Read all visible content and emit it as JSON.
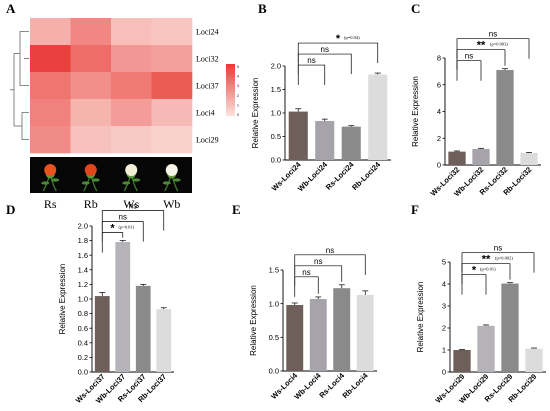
{
  "panel_letters": [
    "A",
    "B",
    "C",
    "D",
    "E",
    "F"
  ],
  "heatmap": {
    "rows": [
      "Loci24",
      "Loci32",
      "Loci37",
      "Loci4",
      "Loci29"
    ],
    "cols": [
      "Rs",
      "Rb",
      "Ws",
      "Wb"
    ],
    "values": [
      [
        0.3,
        0.55,
        0.22,
        0.18
      ],
      [
        0.95,
        0.7,
        0.45,
        0.4
      ],
      [
        0.65,
        0.5,
        0.62,
        0.8
      ],
      [
        0.58,
        0.28,
        0.42,
        0.25
      ],
      [
        0.52,
        0.2,
        0.15,
        0.1
      ]
    ],
    "legend_ticks": [
      "5",
      "4",
      "3",
      "2",
      "1",
      "0"
    ],
    "color_low": "#fbe3df",
    "color_high": "#e83a35"
  },
  "chart_data": [
    {
      "panel": "B",
      "type": "bar",
      "categories": [
        "Ws-Loci24",
        "Wb-Loci24",
        "Rs-Loci24",
        "Rb-Loci24"
      ],
      "values": [
        1.03,
        0.83,
        0.71,
        1.82
      ],
      "errors": [
        0.06,
        0.04,
        0.02,
        0.03
      ],
      "ylabel": "Relative Expression",
      "ylim": [
        0,
        2.0
      ],
      "yticks": [
        "0.0",
        "0.5",
        "1.0",
        "1.5",
        "2.0"
      ],
      "colors": [
        "#6e5f5a",
        "#a6a4aa",
        "#8b8a8b",
        "#dcdcdc"
      ],
      "comparisons": [
        {
          "from": 0,
          "to": 1,
          "label": "ns",
          "pval": ""
        },
        {
          "from": 0,
          "to": 2,
          "label": "ns",
          "pval": ""
        },
        {
          "from": 0,
          "to": 3,
          "label": "*",
          "pval": "(p=0.04)"
        }
      ]
    },
    {
      "panel": "C",
      "type": "bar",
      "categories": [
        "Ws-Loci32",
        "Wb-Loci32",
        "Rs-Loci32",
        "Rb-Loci32"
      ],
      "values": [
        1.0,
        1.2,
        7.1,
        0.9
      ],
      "errors": [
        0.05,
        0.05,
        0.1,
        0.04
      ],
      "ylabel": "Relative Expression",
      "ylim": [
        0,
        8
      ],
      "yticks": [
        "0",
        "2",
        "4",
        "6",
        "8"
      ],
      "colors": [
        "#6e5f5a",
        "#a6a4aa",
        "#8b8a8b",
        "#dcdcdc"
      ],
      "comparisons": [
        {
          "from": 0,
          "to": 1,
          "label": "ns",
          "pval": ""
        },
        {
          "from": 0,
          "to": 2,
          "label": "**",
          "pval": "(p=0.003)"
        },
        {
          "from": 0,
          "to": 3,
          "label": "ns",
          "pval": ""
        }
      ]
    },
    {
      "panel": "D",
      "type": "bar",
      "categories": [
        "Ws-Loci37",
        "Wb-Loci37",
        "Rs-Loci37",
        "Rb-Loci37"
      ],
      "values": [
        1.04,
        1.78,
        1.18,
        0.86
      ],
      "errors": [
        0.05,
        0.02,
        0.02,
        0.02
      ],
      "ylabel": "Relative Expression",
      "ylim": [
        0,
        2.0
      ],
      "yticks": [
        "0.0",
        "0.2",
        "0.4",
        "0.6",
        "0.8",
        "1.0",
        "1.2",
        "1.4",
        "1.6",
        "1.8",
        "2.0"
      ],
      "colors": [
        "#6e5f5a",
        "#b5b3b8",
        "#8b8a8b",
        "#dcdcdc"
      ],
      "comparisons": [
        {
          "from": 0,
          "to": 1,
          "label": "*",
          "pval": "(p=0.01)"
        },
        {
          "from": 0,
          "to": 2,
          "label": "ns",
          "pval": ""
        },
        {
          "from": 0,
          "to": 3,
          "label": "ns",
          "pval": ""
        }
      ]
    },
    {
      "panel": "E",
      "type": "bar",
      "categories": [
        "Ws-Loci4",
        "Wb-Loci4",
        "Rs-Loci4",
        "Rb-Loci4"
      ],
      "values": [
        0.98,
        1.07,
        1.23,
        1.13
      ],
      "errors": [
        0.03,
        0.03,
        0.05,
        0.06
      ],
      "ylabel": "Relative Expression",
      "ylim": [
        0,
        1.5
      ],
      "yticks": [
        "0.0",
        "0.5",
        "1.0",
        "1.5"
      ],
      "colors": [
        "#6e5f5a",
        "#a6a4aa",
        "#8b8a8b",
        "#dcdcdc"
      ],
      "comparisons": [
        {
          "from": 0,
          "to": 1,
          "label": "ns",
          "pval": ""
        },
        {
          "from": 0,
          "to": 2,
          "label": "ns",
          "pval": ""
        },
        {
          "from": 0,
          "to": 3,
          "label": "ns",
          "pval": ""
        }
      ]
    },
    {
      "panel": "F",
      "type": "bar",
      "categories": [
        "Ws-Loci29",
        "Wb-Loci29",
        "Rs-Loci29",
        "Rb-Loci29"
      ],
      "values": [
        1.0,
        2.1,
        4.02,
        1.06
      ],
      "errors": [
        0.03,
        0.04,
        0.04,
        0.03
      ],
      "ylabel": "Relative Expression",
      "ylim": [
        0,
        5
      ],
      "yticks": [
        "0",
        "1",
        "2",
        "3",
        "4",
        "5"
      ],
      "colors": [
        "#6e5f5a",
        "#b5b3b8",
        "#8b8a8b",
        "#dcdcdc"
      ],
      "comparisons": [
        {
          "from": 0,
          "to": 1,
          "label": "*",
          "pval": "(p=0.01)"
        },
        {
          "from": 0,
          "to": 2,
          "label": "**",
          "pval": "(p=0.002)"
        },
        {
          "from": 0,
          "to": 3,
          "label": "ns",
          "pval": ""
        }
      ]
    }
  ]
}
